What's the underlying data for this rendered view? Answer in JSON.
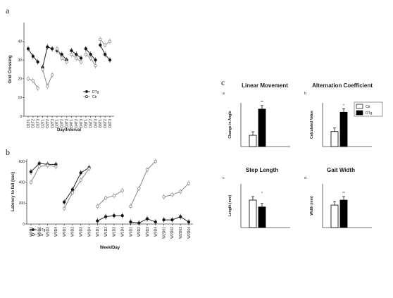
{
  "panels": {
    "a": "a",
    "b": "b",
    "c": "c"
  },
  "chart_data": [
    {
      "id": "a",
      "type": "line",
      "ylabel": "Grid Crossing",
      "xlabel": "Day/Interval",
      "ylim": [
        0,
        50
      ],
      "yticks": [
        0,
        10,
        20,
        30,
        40
      ],
      "x": [
        "D1T1",
        "D1T2",
        "D1T3",
        "D2T1",
        "D2T2",
        "D2T3",
        "D3T1",
        "D3T2",
        "D3T3",
        "D4T1",
        "D4T2",
        "D4T3",
        "D5T1",
        "D5T2",
        "D5T3",
        "D6T1",
        "D6T2",
        "D6T3"
      ],
      "groups": [
        [
          0,
          1,
          2
        ],
        [
          3,
          4,
          5
        ],
        [
          6,
          7,
          8
        ],
        [
          9,
          10,
          11
        ],
        [
          12,
          13,
          14
        ],
        [
          15,
          16,
          17
        ]
      ],
      "legend": [
        "DTg",
        "Ctr"
      ],
      "series": [
        {
          "name": "DTg",
          "marker": "filled",
          "values": [
            36,
            32,
            29,
            26,
            37,
            36,
            35,
            33,
            30,
            35,
            33,
            31,
            36,
            33,
            30,
            38,
            33,
            30
          ]
        },
        {
          "name": "Ctr",
          "marker": "open",
          "values": [
            20,
            19,
            15,
            25,
            16,
            22,
            36,
            31,
            29,
            33,
            31,
            29,
            33,
            31,
            27,
            41,
            38,
            40
          ]
        }
      ]
    },
    {
      "id": "b",
      "type": "line",
      "ylabel": "Latency to fall (sec)",
      "xlabel": "Week/Day",
      "ylim": [
        0,
        620
      ],
      "yticks": [
        0,
        200,
        400,
        600
      ],
      "x": [
        "W0D1",
        "W0D2",
        "W0D3",
        "W0D4",
        "W0D1",
        "W0D2",
        "W0D3",
        "W0D4",
        "W1D1",
        "W1D2",
        "W1D3",
        "W1D4",
        "W0D1",
        "W0D2",
        "W0D3",
        "W0D4",
        "W2D01",
        "W2D02",
        "W2D03",
        "W2D04"
      ],
      "groups": [
        [
          0,
          1,
          2,
          3
        ],
        [
          4,
          5,
          6,
          7
        ],
        [
          8,
          9,
          10,
          11
        ],
        [
          12,
          13,
          14,
          15
        ],
        [
          16,
          17,
          18,
          19
        ]
      ],
      "legend": [
        "DTg",
        "Ctr"
      ],
      "series": [
        {
          "name": "DTg",
          "marker": "filled",
          "values": [
            500,
            580,
            570,
            570,
            210,
            330,
            490,
            540,
            30,
            70,
            80,
            80,
            20,
            10,
            50,
            20,
            40,
            40,
            70,
            20
          ]
        },
        {
          "name": "Ctr",
          "marker": "open",
          "values": [
            400,
            550,
            560,
            550,
            150,
            300,
            420,
            530,
            170,
            250,
            270,
            320,
            170,
            340,
            520,
            600,
            260,
            280,
            310,
            390
          ]
        }
      ]
    },
    {
      "id": "c-a",
      "type": "bar",
      "letter": "a",
      "title": "Linear Movement",
      "ylabel": "Change in Angle",
      "categories": [
        "Ctr",
        "DTg"
      ],
      "values": [
        18,
        60
      ],
      "ylim": [
        0,
        70
      ],
      "significance": "**"
    },
    {
      "id": "c-b",
      "type": "bar",
      "letter": "b",
      "title": "Alternation Coefficient",
      "ylabel": "Calculated Value",
      "categories": [
        "Ctr",
        "DTg"
      ],
      "values": [
        24,
        55
      ],
      "ylim": [
        0,
        70
      ],
      "significance": "*",
      "legend": [
        "Ctr",
        "DTg"
      ]
    },
    {
      "id": "c-c",
      "type": "bar",
      "letter": "c",
      "title": "Step Length",
      "ylabel": "Length (mm)",
      "categories": [
        "Ctr",
        "DTg"
      ],
      "values": [
        44,
        33
      ],
      "ylim": [
        0,
        70
      ],
      "significance": "*"
    },
    {
      "id": "c-d",
      "type": "bar",
      "letter": "d",
      "title": "Gait Width",
      "ylabel": "Width (mm)",
      "categories": [
        "Ctr",
        "DTg"
      ],
      "values": [
        36,
        44
      ],
      "ylim": [
        0,
        70
      ],
      "significance": "**"
    }
  ]
}
